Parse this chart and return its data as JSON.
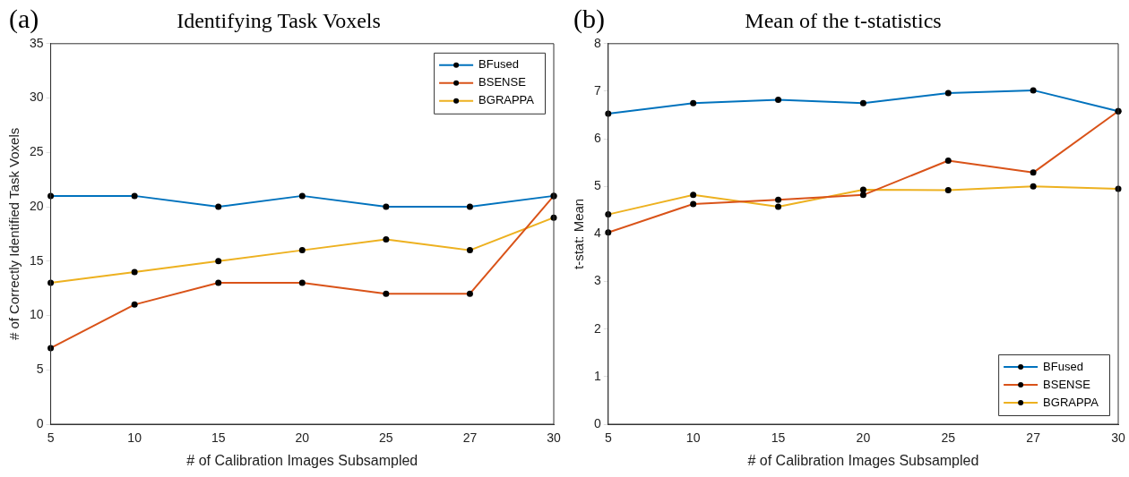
{
  "chart_data": [
    {
      "type": "line",
      "title": "Identifying Task Voxels",
      "xlabel": "# of Calibration Images Subsampled",
      "ylabel": "# of Correctly Identified Task Voxels",
      "annotations": [
        "(a)"
      ],
      "categories": [
        "5",
        "10",
        "15",
        "20",
        "25",
        "27",
        "30"
      ],
      "series": [
        {
          "name": "BFused",
          "color": "#0072bd",
          "values": [
            21,
            21,
            20,
            21,
            20,
            20,
            21
          ]
        },
        {
          "name": "BSENSE",
          "color": "#d95319",
          "values": [
            7,
            11,
            13,
            13,
            12,
            12,
            21
          ]
        },
        {
          "name": "BGRAPPA",
          "color": "#edb120",
          "values": [
            13,
            14,
            15,
            16,
            17,
            16,
            19
          ]
        }
      ],
      "ylim": [
        0,
        35
      ],
      "yticks": [
        0,
        5,
        10,
        15,
        20,
        25,
        30,
        35
      ],
      "grid": false,
      "legend": "top right",
      "marker": "circle",
      "line_style": "solid"
    },
    {
      "type": "line",
      "title": "Mean of the t-statistics",
      "xlabel": "# of Calibration Images Subsampled",
      "ylabel": "t-stat: Mean",
      "annotations": [
        "(b)"
      ],
      "categories": [
        "5",
        "10",
        "15",
        "20",
        "25",
        "27",
        "30"
      ],
      "series": [
        {
          "name": "BFused",
          "color": "#0072bd",
          "values": [
            6.53,
            6.75,
            6.82,
            6.75,
            6.96,
            7.02,
            6.58
          ]
        },
        {
          "name": "BSENSE",
          "color": "#d95319",
          "values": [
            4.03,
            4.63,
            4.72,
            4.82,
            5.54,
            5.29,
            6.58
          ]
        },
        {
          "name": "BGRAPPA",
          "color": "#edb120",
          "values": [
            4.41,
            4.82,
            4.57,
            4.93,
            4.92,
            5.0,
            4.95
          ]
        }
      ],
      "ylim": [
        0,
        8
      ],
      "yticks": [
        0,
        1,
        2,
        3,
        4,
        5,
        6,
        7,
        8
      ],
      "grid": false,
      "legend": "bottom right",
      "marker": "circle",
      "line_style": "solid"
    }
  ]
}
